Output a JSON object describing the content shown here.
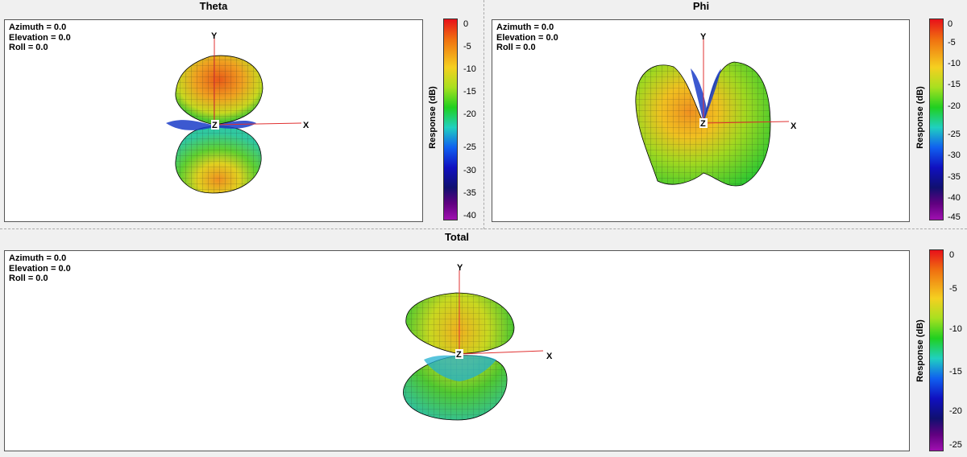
{
  "panels": {
    "theta": {
      "title": "Theta",
      "info": {
        "azimuth": "Azimuth = 0.0",
        "elevation": "Elevation = 0.0",
        "roll": "Roll = 0.0"
      },
      "axes": {
        "y": "Y",
        "x": "X",
        "z": "Z"
      },
      "colorbar": {
        "label": "Response  (dB)",
        "ticks": [
          "0",
          "-5",
          "-10",
          "-15",
          "-20",
          "-25",
          "-30",
          "-35",
          "-40"
        ]
      }
    },
    "phi": {
      "title": "Phi",
      "info": {
        "azimuth": "Azimuth = 0.0",
        "elevation": "Elevation = 0.0",
        "roll": "Roll = 0.0"
      },
      "axes": {
        "y": "Y",
        "x": "X",
        "z": "Z"
      },
      "colorbar": {
        "label": "Response  (dB)",
        "ticks": [
          "0",
          "-5",
          "-10",
          "-15",
          "-20",
          "-25",
          "-30",
          "-35",
          "-40",
          "-45"
        ]
      }
    },
    "total": {
      "title": "Total",
      "info": {
        "azimuth": "Azimuth = 0.0",
        "elevation": "Elevation = 0.0",
        "roll": "Roll = 0.0"
      },
      "axes": {
        "y": "Y",
        "x": "X",
        "z": "Z"
      },
      "colorbar": {
        "label": "Response  (dB)",
        "ticks": [
          "0",
          "-5",
          "-10",
          "-15",
          "-20",
          "-25"
        ]
      }
    }
  }
}
